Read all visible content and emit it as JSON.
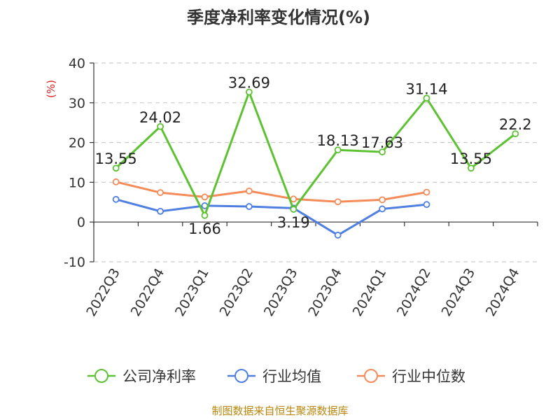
{
  "chart_data": {
    "type": "line",
    "title": "季度净利率变化情况(%)",
    "ylabel": "(%)",
    "ylim": [
      -10,
      40
    ],
    "yticks": [
      40,
      30,
      20,
      10,
      0,
      -10
    ],
    "grid": true,
    "legend_placement": "bottom",
    "categories": [
      "2022Q3",
      "2022Q4",
      "2023Q1",
      "2023Q2",
      "2023Q3",
      "2023Q4",
      "2024Q1",
      "2024Q2",
      "2024Q3",
      "2024Q4"
    ],
    "series": [
      {
        "name": "公司净利率",
        "color": "#5cc232",
        "values": [
          13.55,
          24.02,
          1.66,
          32.69,
          3.19,
          18.13,
          17.63,
          31.14,
          13.55,
          22.2
        ],
        "labels": [
          "13.55",
          "24.02",
          "1.66",
          "32.69",
          "3.19",
          "18.13",
          "17.63",
          "31.14",
          "13.55",
          "22.2"
        ]
      },
      {
        "name": "行业均值",
        "color": "#4f7fe0",
        "values": [
          5.7,
          2.7,
          4.1,
          3.9,
          3.5,
          -3.3,
          3.3,
          4.4,
          null,
          null
        ]
      },
      {
        "name": "行业中位数",
        "color": "#f58b58",
        "values": [
          10.1,
          7.4,
          6.3,
          7.8,
          5.8,
          5.1,
          5.6,
          7.5,
          null,
          null
        ]
      }
    ],
    "source": "制图数据来自恒生聚源数据库"
  }
}
